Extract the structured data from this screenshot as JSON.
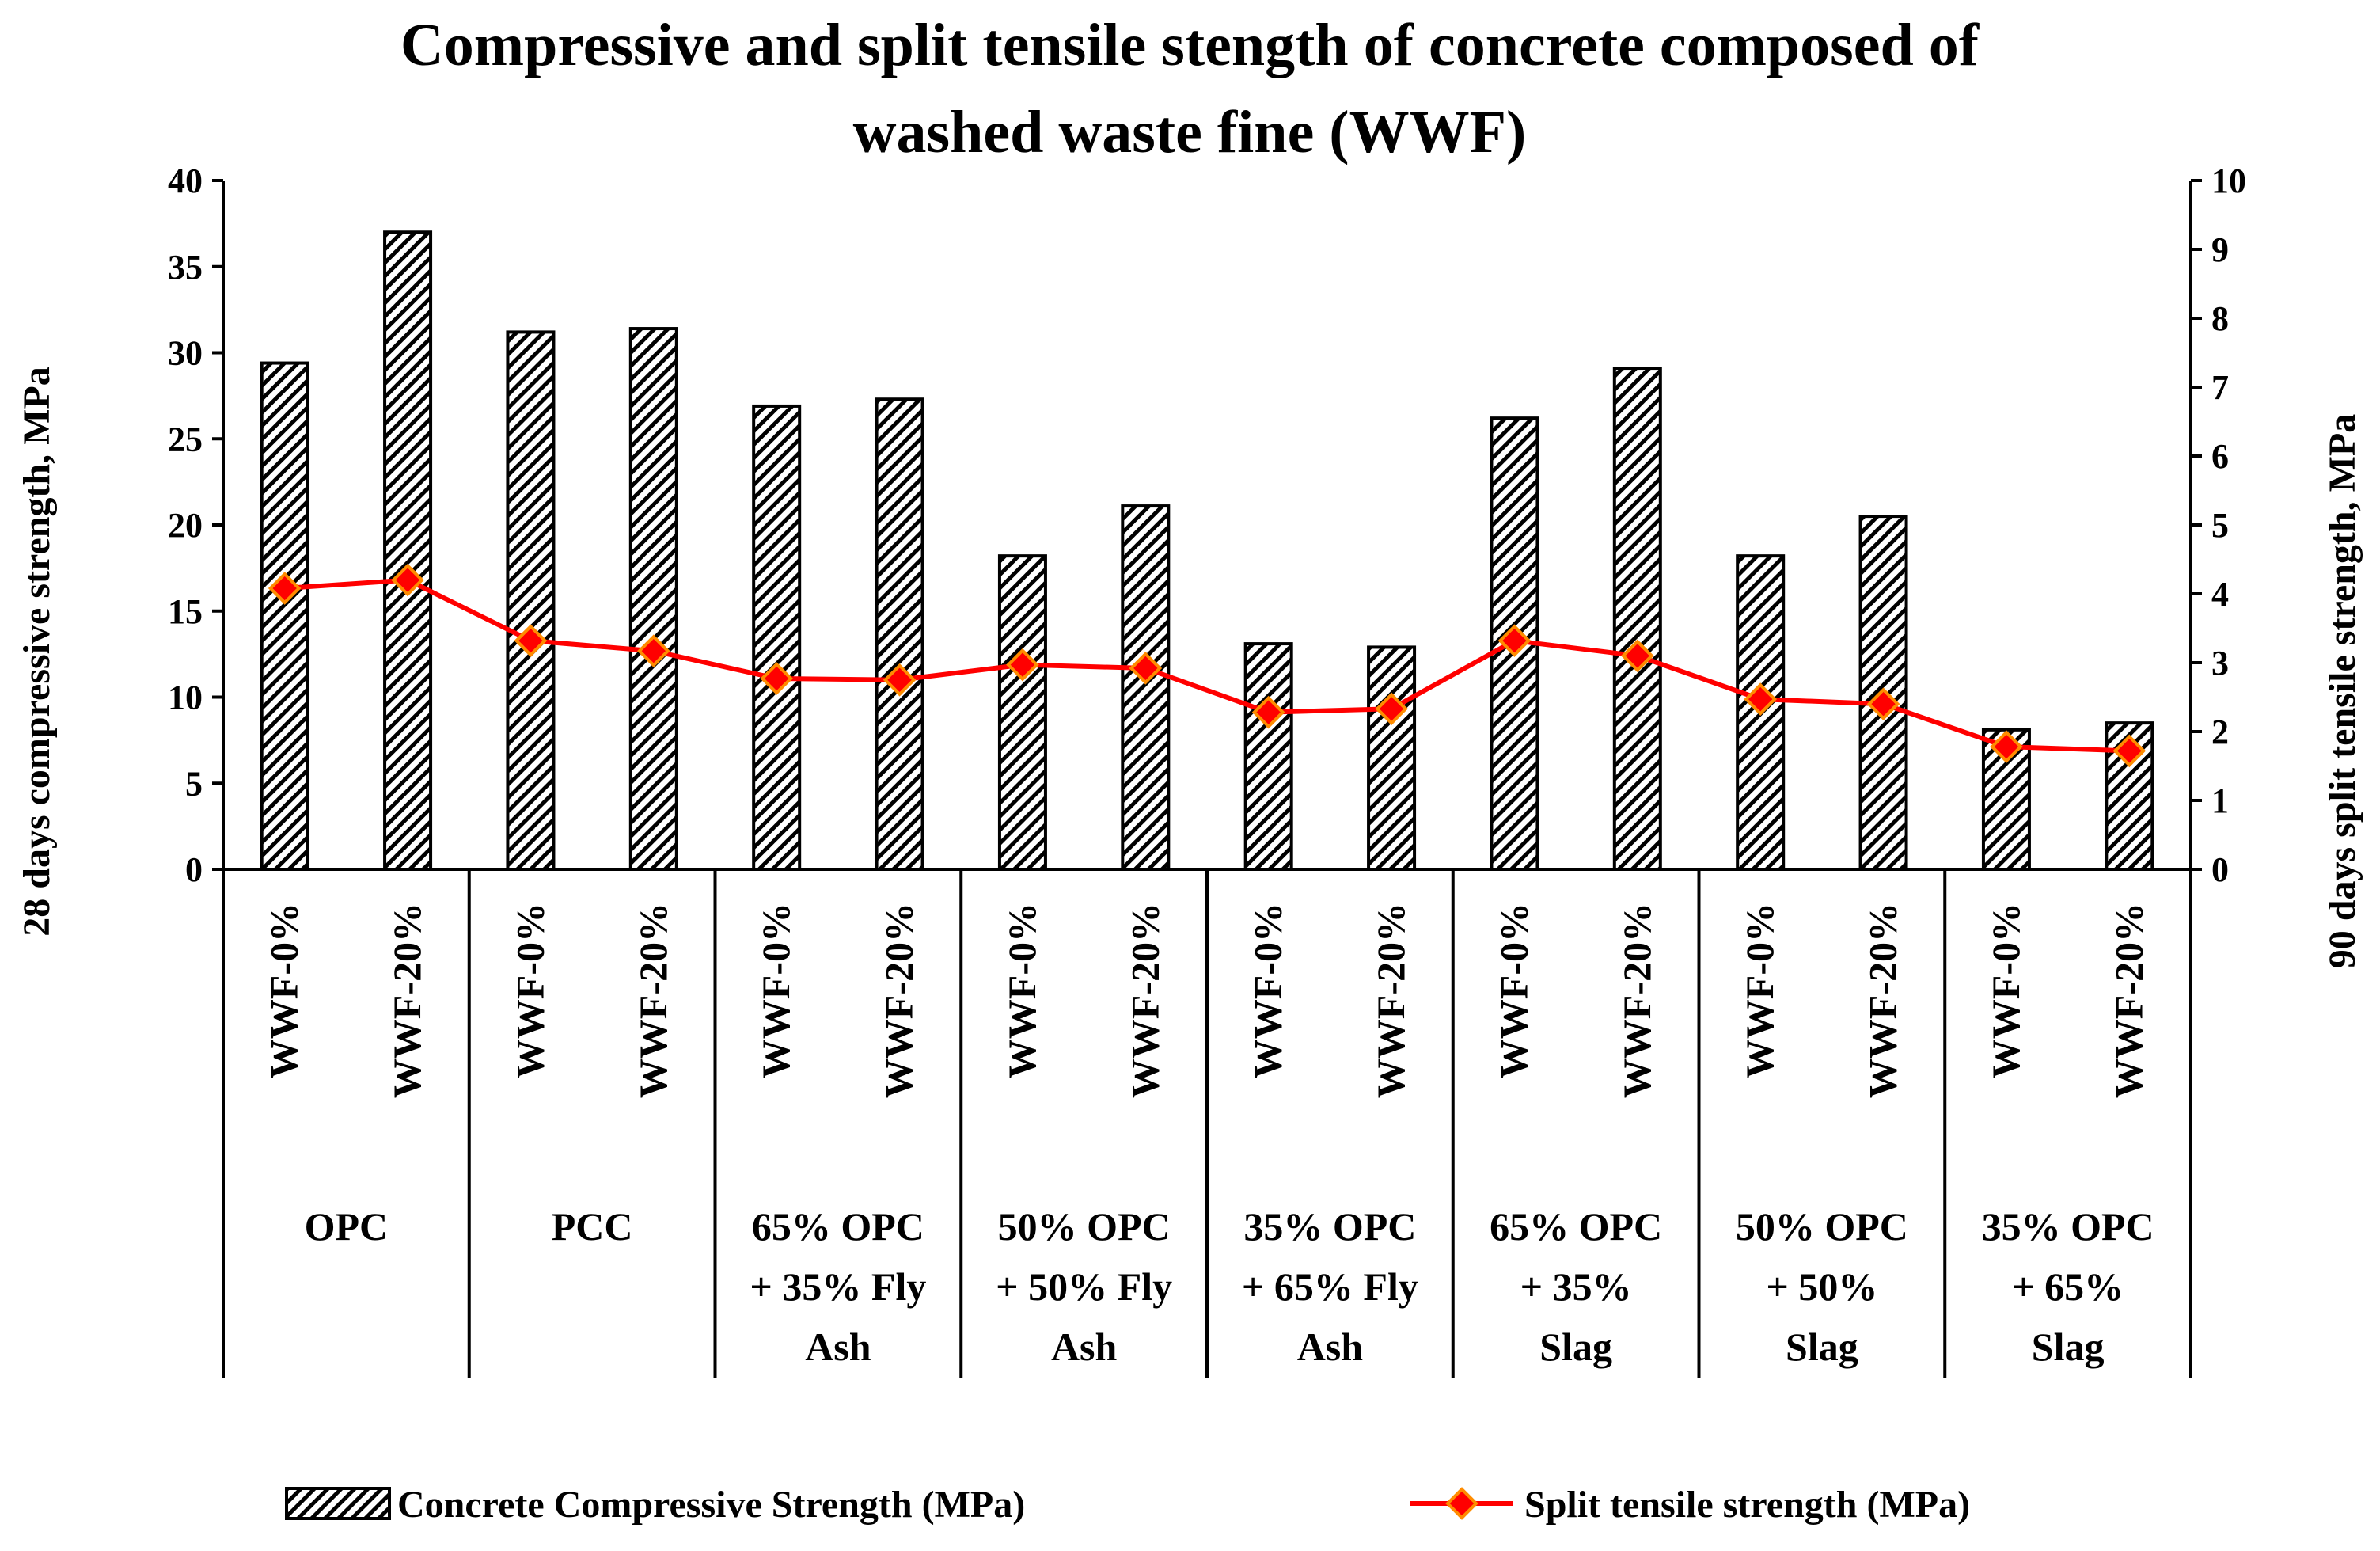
{
  "chart_data": {
    "type": "bar",
    "title": "Compressive and split tensile stength of concrete composed of washed waste fine (WWF)",
    "title_lines": [
      "Compressive and split tensile stength of concrete composed of",
      "washed waste fine (WWF)"
    ],
    "ylabel": "28 days compressive strength, MPa",
    "y2label": "90 days split tensile strength, MPa",
    "ylim": [
      0,
      40
    ],
    "y2lim": [
      0,
      10
    ],
    "yticks": [
      "0",
      "5",
      "10",
      "15",
      "20",
      "25",
      "30",
      "35",
      "40"
    ],
    "y2ticks": [
      "0",
      "1",
      "2",
      "3",
      "4",
      "5",
      "6",
      "7",
      "8",
      "9",
      "10"
    ],
    "categories": [
      "WWF-0%",
      "WWF-20%",
      "WWF-0%",
      "WWF-20%",
      "WWF-0%",
      "WWF-20%",
      "WWF-0%",
      "WWF-20%",
      "WWF-0%",
      "WWF-20%",
      "WWF-0%",
      "WWF-20%",
      "WWF-0%",
      "WWF-20%",
      "WWF-0%",
      "WWF-20%"
    ],
    "groups": [
      {
        "lines": [
          "OPC"
        ]
      },
      {
        "lines": [
          "PCC"
        ]
      },
      {
        "lines": [
          "65%  OPC",
          "+ 35%  Fly",
          "Ash"
        ]
      },
      {
        "lines": [
          "50%  OPC",
          "+ 50%  Fly",
          "Ash"
        ]
      },
      {
        "lines": [
          "35%  OPC",
          "+ 65%  Fly",
          "Ash"
        ]
      },
      {
        "lines": [
          "65%  OPC",
          "+ 35%",
          "Slag"
        ]
      },
      {
        "lines": [
          "50%  OPC",
          "+ 50%",
          "Slag"
        ]
      },
      {
        "lines": [
          "35%  OPC",
          "+ 65%",
          "Slag"
        ]
      }
    ],
    "series": [
      {
        "name": "Concrete Compressive Strength (MPa)",
        "axis": "left",
        "kind": "bar",
        "values": [
          29.4,
          37.0,
          31.2,
          31.4,
          26.9,
          27.3,
          18.2,
          21.1,
          13.1,
          12.9,
          26.2,
          29.1,
          18.2,
          20.5,
          8.1,
          8.5
        ]
      },
      {
        "name": "Split tensile strength (MPa)",
        "axis": "right",
        "kind": "line",
        "values": [
          4.08,
          4.2,
          3.32,
          3.17,
          2.77,
          2.75,
          2.97,
          2.92,
          2.28,
          2.33,
          3.32,
          3.1,
          2.47,
          2.4,
          1.78,
          1.72
        ]
      }
    ],
    "legend": "bottom"
  },
  "colors": {
    "line": "#ff0000",
    "marker_fill": "#ff0000",
    "marker_stroke": "#ff8c00",
    "bar_stroke": "#000000"
  }
}
